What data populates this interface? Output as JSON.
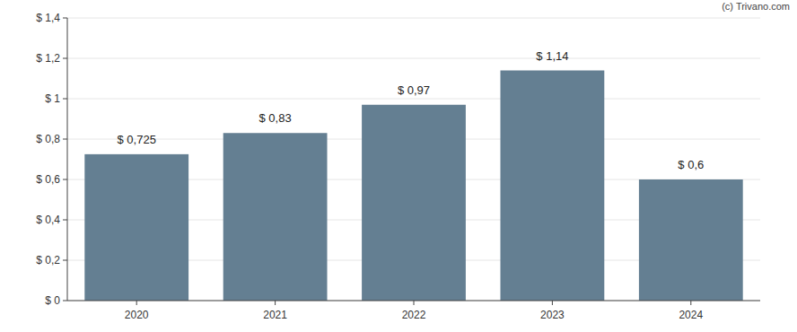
{
  "chart_data": {
    "type": "bar",
    "annotation": "(c) Trivano.com",
    "categories": [
      "2020",
      "2021",
      "2022",
      "2023",
      "2024"
    ],
    "values": [
      0.725,
      0.83,
      0.97,
      1.14,
      0.6
    ],
    "value_labels": [
      "$ 0,725",
      "$ 0,83",
      "$ 0,97",
      "$ 1,14",
      "$ 0,6"
    ],
    "color": "#647f92",
    "ylim": [
      0,
      1.4
    ],
    "yticks": [
      {
        "value": 0,
        "label": "$ 0"
      },
      {
        "value": 0.2,
        "label": "$ 0,2"
      },
      {
        "value": 0.4,
        "label": "$ 0,4"
      },
      {
        "value": 0.6,
        "label": "$ 0,6"
      },
      {
        "value": 0.8,
        "label": "$ 0,8"
      },
      {
        "value": 1,
        "label": "$ 1"
      },
      {
        "value": 1.2,
        "label": "$ 1,2"
      },
      {
        "value": 1.4,
        "label": "$ 1,4"
      }
    ],
    "grid": true,
    "data_labels": true
  }
}
